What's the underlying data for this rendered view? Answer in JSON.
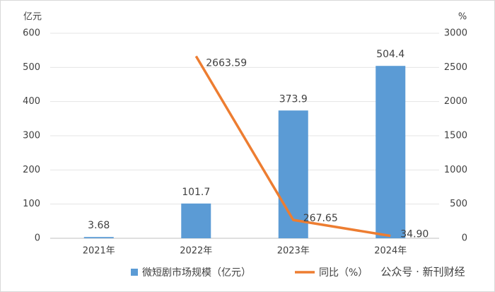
{
  "chart_data": {
    "type": "combo",
    "y_axis_label": "亿元",
    "y2_axis_label": "%",
    "categories": [
      "2021年",
      "2022年",
      "2023年",
      "2024年"
    ],
    "series": [
      {
        "name": "微短剧市场规模（亿元）",
        "type": "bar",
        "color": "#5b9bd5",
        "values": [
          3.68,
          101.7,
          373.9,
          504.4
        ]
      },
      {
        "name": "同比（%）",
        "type": "line",
        "axis": "y2",
        "color": "#ed7d31",
        "values": [
          null,
          2663.59,
          267.65,
          34.9
        ],
        "value_labels": [
          null,
          "2663.59",
          "267.65",
          "34.90"
        ]
      }
    ],
    "ylim": [
      0,
      600
    ],
    "yticks": [
      0,
      100,
      200,
      300,
      400,
      500,
      600
    ],
    "y2lim": [
      0,
      3000
    ],
    "y2ticks": [
      0,
      500,
      1000,
      1500,
      2000,
      2500,
      3000
    ],
    "grid": true,
    "legend": "bottom",
    "watermark": "公众号 · 新刊财经"
  }
}
